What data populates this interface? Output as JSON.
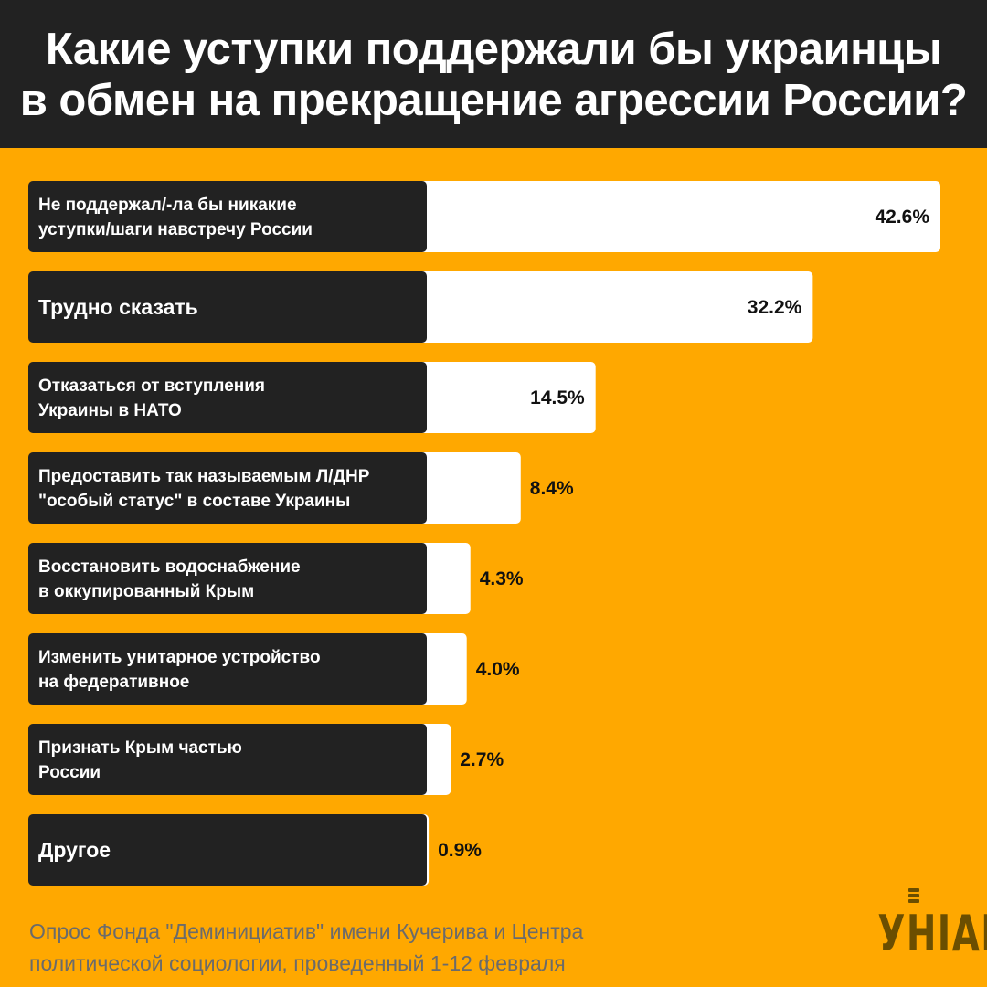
{
  "title_lines": [
    "Какие уступки поддержали бы украинцы",
    "в обмен на прекращение агрессии России?"
  ],
  "footer_lines": [
    "Опрос Фонда \"Деминициатив\" имени Кучерива и Центра",
    "политической социологии, проведенный 1-12 февраля"
  ],
  "logo_text": "УНІАН",
  "colors": {
    "background": "#FFA800",
    "header": "#222222",
    "label_box": "#222222",
    "bar": "#FFFFFF",
    "value_text": "#111111",
    "footer_text": "#6B6B6B"
  },
  "chart_data": {
    "type": "bar",
    "orientation": "horizontal",
    "unit": "%",
    "categories": [
      [
        "Не поддержал/-ла бы никакие",
        "уступки/шаги навстречу России"
      ],
      [
        "Трудно сказать"
      ],
      [
        "Отказаться от вступления",
        "Украины в НАТО"
      ],
      [
        "Предоставить так называемым Л/ДНР",
        "\"особый статус\" в составе Украины"
      ],
      [
        "Восстановить водоснабжение",
        "в оккупированный Крым"
      ],
      [
        "Изменить унитарное устройство",
        "на федеративное"
      ],
      [
        "Признать Крым частью",
        "России"
      ],
      [
        "Другое"
      ]
    ],
    "values": [
      42.6,
      32.2,
      14.5,
      8.4,
      4.3,
      4.0,
      2.7,
      0.9
    ],
    "value_labels": [
      "42.6%",
      "32.2%",
      "14.5%",
      "8.4%",
      "4.3%",
      "4.0%",
      "2.7%",
      "0.9%"
    ],
    "xlim": [
      0,
      42.6
    ]
  }
}
